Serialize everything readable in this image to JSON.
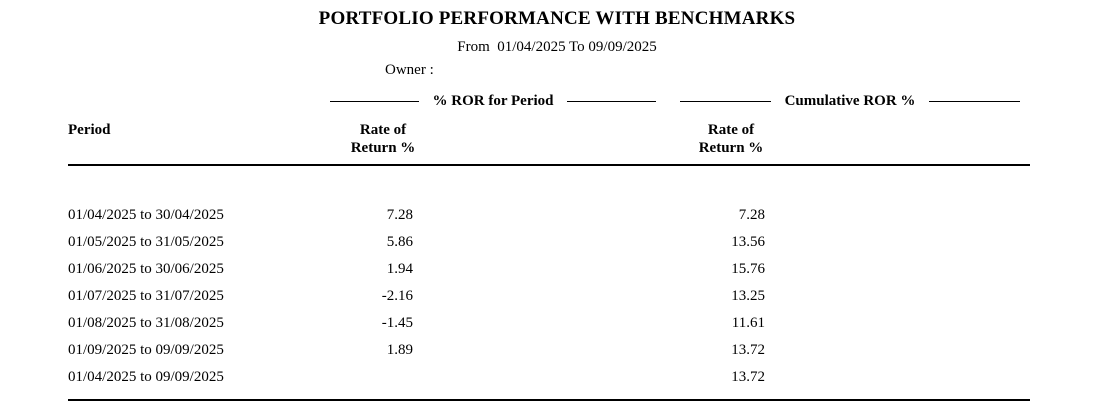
{
  "report": {
    "title": "PORTFOLIO PERFORMANCE WITH BENCHMARKS",
    "date_range": "From  01/04/2025 To 09/09/2025",
    "owner_label": "Owner :",
    "groups": {
      "period_ror_label": "% ROR for Period",
      "cumulative_ror_label": "Cumulative ROR %"
    },
    "columns": {
      "period": "Period",
      "ror_line1": "Rate of",
      "ror_line2": "Return %",
      "cum_line1": "Rate of",
      "cum_line2": "Return %"
    },
    "rows": [
      {
        "period": "01/04/2025 to 30/04/2025",
        "ror": "7.28",
        "cumulative": "7.28"
      },
      {
        "period": "01/05/2025 to 31/05/2025",
        "ror": "5.86",
        "cumulative": "13.56"
      },
      {
        "period": "01/06/2025 to 30/06/2025",
        "ror": "1.94",
        "cumulative": "15.76"
      },
      {
        "period": "01/07/2025 to 31/07/2025",
        "ror": "-2.16",
        "cumulative": "13.25"
      },
      {
        "period": "01/08/2025 to 31/08/2025",
        "ror": "-1.45",
        "cumulative": "11.61"
      },
      {
        "period": "01/09/2025 to 09/09/2025",
        "ror": "1.89",
        "cumulative": "13.72"
      },
      {
        "period": "01/04/2025 to 09/09/2025",
        "ror": "",
        "cumulative": "13.72"
      }
    ],
    "colors": {
      "text": "#000000",
      "background": "#ffffff",
      "rule": "#000000"
    }
  }
}
